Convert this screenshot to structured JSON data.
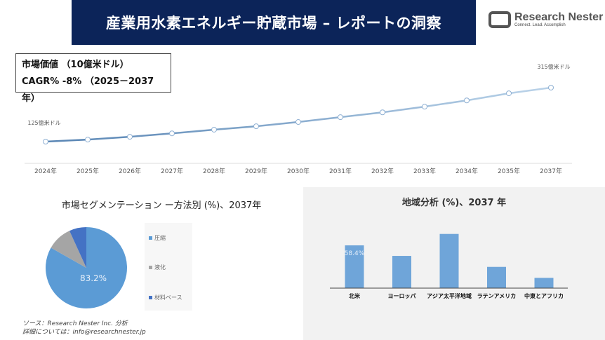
{
  "header": {
    "title": "産業用水素エネルギー貯蔵市場 – レポートの洞察",
    "logo_name": "Research Nester",
    "logo_tagline": "Connect. Lead. Accomplish"
  },
  "infobox": {
    "line1": "市場価値 （10億米ドル）",
    "line2": "CAGR% -8% （2025－2037年）"
  },
  "colors": {
    "banner": "#0c2459",
    "line": "#5b87b5",
    "pie_compression": "#5b9bd5",
    "pie_liquefaction": "#a5a5a5",
    "pie_material": "#4472c4",
    "bar": "#6fa5d9"
  },
  "chart_data": [
    {
      "type": "line",
      "categories": [
        "2024年",
        "2025年",
        "2026年",
        "2027年",
        "2028年",
        "2029年",
        "2030年",
        "2031年",
        "2032年",
        "2033年",
        "2034年",
        "2035年",
        "2037年"
      ],
      "values": [
        125,
        132,
        142,
        154,
        167,
        179,
        194,
        211,
        228,
        248,
        270,
        295,
        315
      ],
      "data_labels": {
        "first": "125億米ドル",
        "last": "315億米ドル"
      },
      "grid": false
    },
    {
      "type": "pie",
      "title": "市場セグメンテーション ー方法別 (%)、2037年",
      "categories": [
        "圧縮",
        "液化",
        "材料ベース"
      ],
      "values": [
        83.2,
        10.0,
        6.8
      ],
      "data_label": "83.2%",
      "legend": "right"
    },
    {
      "type": "bar",
      "title": "地域分析 (%)、2037 年",
      "categories": [
        "北米",
        "ヨーロッパ",
        "アジア太平洋地域",
        "ラテンアメリカ",
        "中東とアフリカ"
      ],
      "values": [
        58.4,
        44,
        74,
        29,
        14
      ],
      "data_label": "58.4%"
    }
  ],
  "footer": {
    "source": "ソース：Research Nester Inc. 分析",
    "contact": "詳細については：info@researchnester.jp"
  }
}
